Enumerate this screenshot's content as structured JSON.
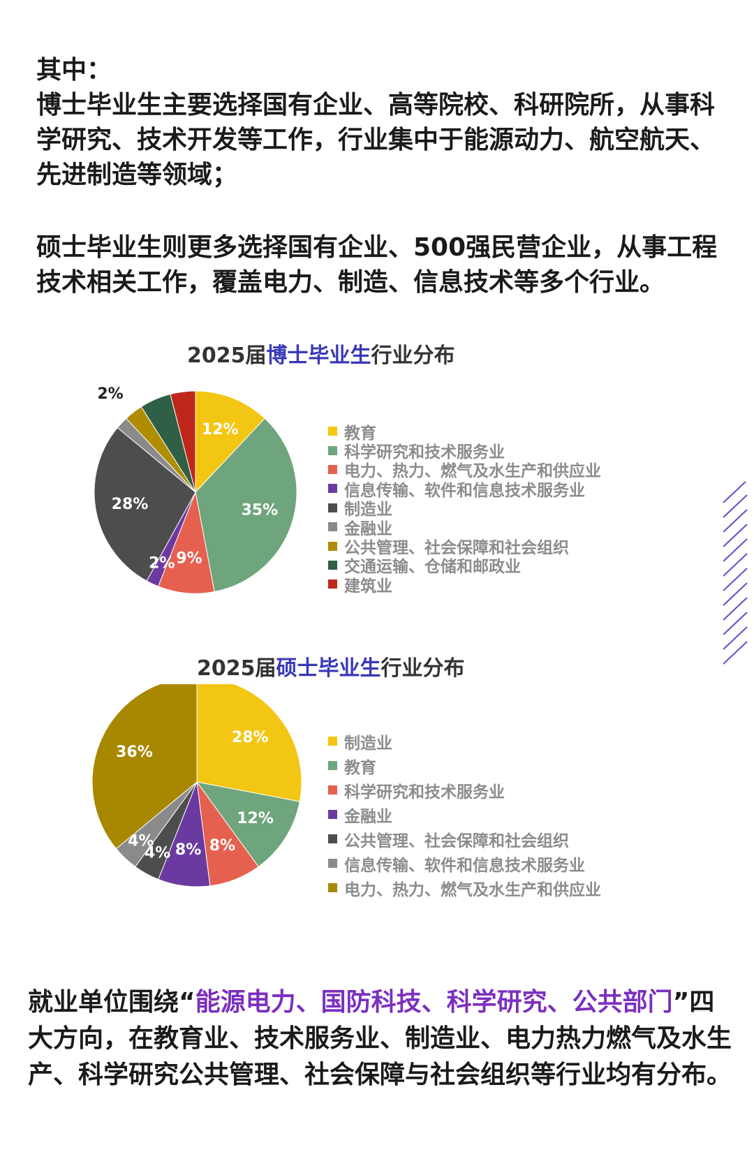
{
  "text": {
    "intro": "其中：",
    "phd_paragraph": "博士毕业生主要选择国有企业、高等院校、科研院所，从事科学研究、技术开发等工作，行业集中于能源动力、航空航天、先进制造等领域；",
    "master_paragraph": "硕士毕业生则更多选择国有企业、500强民营企业，从事工程技术相关工作，覆盖电力、制造、信息技术等多个行业。",
    "bottom_before": "就业单位围绕“",
    "bottom_highlight": "能源电力、国防科技、科学研究、公共部门",
    "bottom_after": "”四大方向，在教育业、技术服务业、制造业、电力热力燃气及水生产、科学研究公共管理、社会保障与社会组织等行业均有分布。"
  },
  "colors": {
    "highlight_purple": "#7b2fbf",
    "title_highlight": "#3838b8",
    "decoration_lines": "#5a4fc9"
  },
  "chart_data": [
    {
      "type": "pie",
      "title_prefix": "2025届",
      "title_highlight": "博士毕业生",
      "title_suffix": "行业分布",
      "legend_position": "right",
      "slices": [
        {
          "label": "教育",
          "value": 12,
          "display": "12%",
          "color": "#f3c613"
        },
        {
          "label": "科学研究和技术服务业",
          "value": 35,
          "display": "35%",
          "color": "#6fa57c"
        },
        {
          "label": "电力、热力、燃气及水生产和供应业",
          "value": 9,
          "display": "9%",
          "color": "#e5604f"
        },
        {
          "label": "信息传输、软件和信息技术服务业",
          "value": 2,
          "display": "2%",
          "color": "#6b3aa0"
        },
        {
          "label": "制造业",
          "value": 28,
          "display": "28%",
          "color": "#4d4d4d"
        },
        {
          "label": "金融业",
          "value": 2,
          "display": "2%",
          "color": "#8a8a8a"
        },
        {
          "label": "公共管理、社会保障和社会组织",
          "value": 3,
          "display": "3%",
          "color": "#b08d00"
        },
        {
          "label": "交通运输、仓储和邮政业",
          "value": 5,
          "display": "5%",
          "color": "#2f5f45"
        },
        {
          "label": "建筑业",
          "value": 4,
          "display": "4%",
          "color": "#c0271b"
        }
      ]
    },
    {
      "type": "pie",
      "title_prefix": "2025届",
      "title_highlight": "硕士毕业生",
      "title_suffix": "行业分布",
      "legend_position": "right",
      "slices": [
        {
          "label": "制造业",
          "value": 28,
          "display": "28%",
          "color": "#f3c613"
        },
        {
          "label": "教育",
          "value": 12,
          "display": "12%",
          "color": "#6fa57c"
        },
        {
          "label": "科学研究和技术服务业",
          "value": 8,
          "display": "8%",
          "color": "#e5604f"
        },
        {
          "label": "金融业",
          "value": 8,
          "display": "8%",
          "color": "#6b3aa0"
        },
        {
          "label": "公共管理、社会保障和社会组织",
          "value": 4,
          "display": "4%",
          "color": "#4d4d4d"
        },
        {
          "label": "信息传输、软件和信息技术服务业",
          "value": 4,
          "display": "4%",
          "color": "#8a8a8a"
        },
        {
          "label": "电力、热力、燃气及水生产和供应业",
          "value": 36,
          "display": "36%",
          "color": "#a88800"
        }
      ]
    }
  ]
}
